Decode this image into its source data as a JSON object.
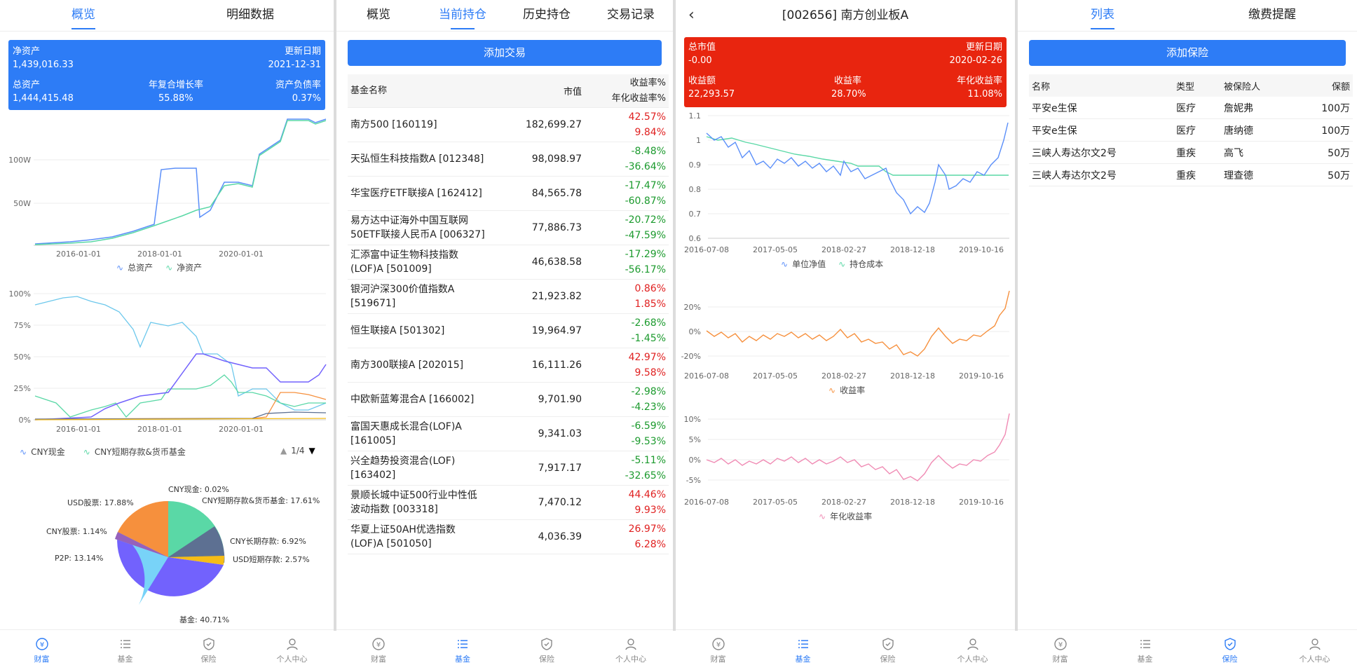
{
  "screen1": {
    "tabs": [
      "概览",
      "明细数据"
    ],
    "summary": {
      "net_assets_label": "净资产",
      "net_assets": "1,439,016.33",
      "update_label": "更新日期",
      "update_date": "2021-12-31",
      "total_assets_label": "总资产",
      "total_assets": "1,444,415.48",
      "cagr_label": "年复合增长率",
      "cagr": "55.88%",
      "debt_ratio_label": "资产负债率",
      "debt_ratio": "0.37%"
    },
    "chart1": {
      "y_ticks": [
        "100W",
        "50W"
      ],
      "x_ticks": [
        "2016-01-01",
        "2018-01-01",
        "2020-01-01"
      ],
      "legend": [
        "总资产",
        "净资产"
      ]
    },
    "chart2": {
      "y_ticks": [
        "100%",
        "75%",
        "50%",
        "25%",
        "0%"
      ],
      "x_ticks": [
        "2016-01-01",
        "2018-01-01",
        "2020-01-01"
      ],
      "legend": [
        "CNY现金",
        "CNY短期存款&货币基金"
      ],
      "pager": "1/4"
    },
    "pie": {
      "labels": [
        "CNY现金: 0.02%",
        "CNY短期存款&货币基金: 17.61%",
        "CNY长期存款: 6.92%",
        "USD短期存款: 2.57%",
        "基金: 40.71%",
        "P2P: 13.14%",
        "CNY股票: 1.14%",
        "USD股票: 17.88%"
      ]
    }
  },
  "screen2": {
    "tabs": [
      "概览",
      "当前持仓",
      "历史持仓",
      "交易记录"
    ],
    "add_button": "添加交易",
    "headers": {
      "name": "基金名称",
      "value": "市值",
      "ret1": "收益率%",
      "ret2": "年化收益率%"
    },
    "rows": [
      {
        "name1": "南方500 [160119]",
        "name2": "",
        "value": "182,699.27",
        "r1": "42.57%",
        "r2": "9.84%"
      },
      {
        "name1": "天弘恒生科技指数A [012348]",
        "name2": "",
        "value": "98,098.97",
        "r1": "-8.48%",
        "r2": "-36.64%"
      },
      {
        "name1": "华宝医疗ETF联接A [162412]",
        "name2": "",
        "value": "84,565.78",
        "r1": "-17.47%",
        "r2": "-60.87%"
      },
      {
        "name1": "易方达中证海外中国互联网",
        "name2": "50ETF联接人民币A [006327]",
        "value": "77,886.73",
        "r1": "-20.72%",
        "r2": "-47.59%"
      },
      {
        "name1": "汇添富中证生物科技指数",
        "name2": "(LOF)A [501009]",
        "value": "46,638.58",
        "r1": "-17.29%",
        "r2": "-56.17%"
      },
      {
        "name1": "银河沪深300价值指数A",
        "name2": "[519671]",
        "value": "21,923.82",
        "r1": "0.86%",
        "r2": "1.85%"
      },
      {
        "name1": "恒生联接A [501302]",
        "name2": "",
        "value": "19,964.97",
        "r1": "-2.68%",
        "r2": "-1.45%"
      },
      {
        "name1": "南方300联接A [202015]",
        "name2": "",
        "value": "16,111.26",
        "r1": "42.97%",
        "r2": "9.58%"
      },
      {
        "name1": "中欧新蓝筹混合A [166002]",
        "name2": "",
        "value": "9,701.90",
        "r1": "-2.98%",
        "r2": "-4.23%"
      },
      {
        "name1": "富国天惠成长混合(LOF)A",
        "name2": "[161005]",
        "value": "9,341.03",
        "r1": "-6.59%",
        "r2": "-9.53%"
      },
      {
        "name1": "兴全趋势投资混合(LOF)",
        "name2": "[163402]",
        "value": "7,917.17",
        "r1": "-5.11%",
        "r2": "-32.65%"
      },
      {
        "name1": "景顺长城中证500行业中性低",
        "name2": "波动指数 [003318]",
        "value": "7,470.12",
        "r1": "44.46%",
        "r2": "9.93%"
      },
      {
        "name1": "华夏上证50AH优选指数",
        "name2": "(LOF)A [501050]",
        "value": "4,036.39",
        "r1": "26.97%",
        "r2": "6.28%"
      }
    ]
  },
  "screen3": {
    "title": "[002656] 南方创业板A",
    "header": {
      "mv_label": "总市值",
      "mv": "-0.00",
      "update_label": "更新日期",
      "update": "2020-02-26",
      "profit_label": "收益额",
      "profit": "22,293.57",
      "ret_label": "收益率",
      "ret": "28.70%",
      "ann_label": "年化收益率",
      "ann": "11.08%"
    },
    "x_ticks": [
      "2016-07-08",
      "2017-05-05",
      "2018-02-27",
      "2018-12-18",
      "2019-10-16"
    ],
    "chart1_y": [
      "1.1",
      "1",
      "0.9",
      "0.8",
      "0.7",
      "0.6"
    ],
    "chart1_legend": [
      "单位净值",
      "持仓成本"
    ],
    "chart2_y": [
      "20%",
      "0%",
      "-20%"
    ],
    "chart2_legend": [
      "收益率"
    ],
    "chart3_y": [
      "10%",
      "5%",
      "0%",
      "-5%"
    ],
    "chart3_legend": [
      "年化收益率"
    ]
  },
  "screen4": {
    "tabs": [
      "列表",
      "缴费提醒"
    ],
    "add_button": "添加保险",
    "headers": [
      "名称",
      "类型",
      "被保险人",
      "保额"
    ],
    "rows": [
      [
        "平安e生保",
        "医疗",
        "詹妮弗",
        "100万"
      ],
      [
        "平安e生保",
        "医疗",
        "唐纳德",
        "100万"
      ],
      [
        "三峡人寿达尔文2号",
        "重疾",
        "高飞",
        "50万"
      ],
      [
        "三峡人寿达尔文2号",
        "重疾",
        "理查德",
        "50万"
      ]
    ]
  },
  "nav": [
    "财富",
    "基金",
    "保险",
    "个人中心"
  ],
  "colors": {
    "blue": "#2d7cf6",
    "red": "#e8250f",
    "green": "#5ad8a6",
    "orange": "#f6903d",
    "pink": "#f08bb4"
  }
}
